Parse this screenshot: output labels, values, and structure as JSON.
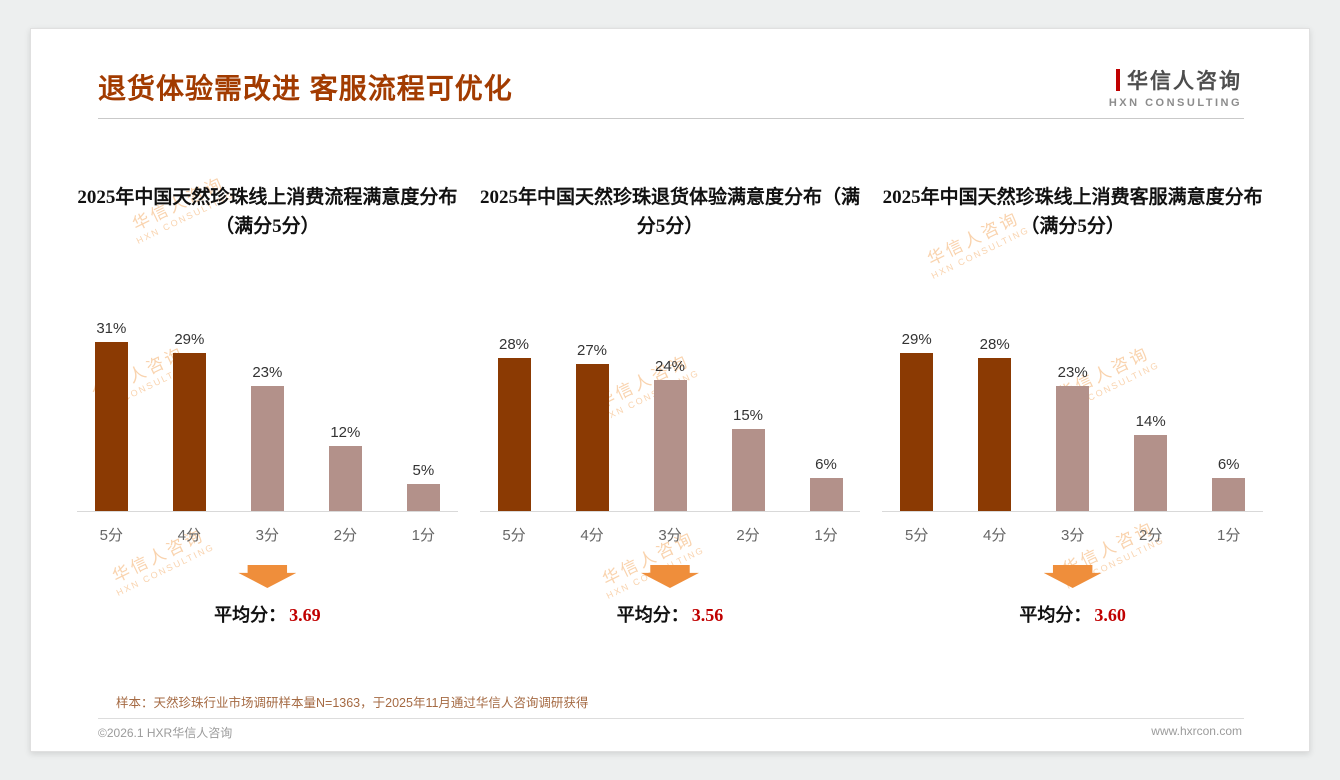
{
  "page": {
    "title": "退货体验需改进 客服流程可优化",
    "logo": {
      "cn": "华信人咨询",
      "en": "HXN CONSULTING"
    },
    "watermark": {
      "cn": "华信人咨询",
      "en": "HXN CONSULTING"
    },
    "footnote": "样本：天然珍珠行业市场调研样本量N=1363，于2025年11月通过华信人咨询调研获得",
    "copyright": "©2026.1 HXR华信人咨询",
    "website": "www.hxrcon.com"
  },
  "labels": {
    "average_prefix": "平均分："
  },
  "colors": {
    "title": "#A23B00",
    "bar_dark": "#8B3A03",
    "bar_light": "#B3918A",
    "average": "#C00000",
    "arrow": "#EF8E3B",
    "footnote": "#A56A43"
  },
  "chart_data": [
    {
      "type": "bar",
      "title": "2025年中国天然珍珠线上消费流程满意度分布（满分5分）",
      "categories": [
        "5分",
        "4分",
        "3分",
        "2分",
        "1分"
      ],
      "values": [
        31,
        29,
        23,
        12,
        5
      ],
      "value_labels": [
        "31%",
        "29%",
        "23%",
        "12%",
        "5%"
      ],
      "bar_colors": [
        "#8B3A03",
        "#8B3A03",
        "#B3918A",
        "#B3918A",
        "#B3918A"
      ],
      "average": "3.69",
      "xlabel": "",
      "ylabel": "",
      "unit": "%",
      "ylim": [
        0,
        35
      ],
      "grid": false,
      "legend": "none"
    },
    {
      "type": "bar",
      "title": "2025年中国天然珍珠退货体验满意度分布（满分5分）",
      "categories": [
        "5分",
        "4分",
        "3分",
        "2分",
        "1分"
      ],
      "values": [
        28,
        27,
        24,
        15,
        6
      ],
      "value_labels": [
        "28%",
        "27%",
        "24%",
        "15%",
        "6%"
      ],
      "bar_colors": [
        "#8B3A03",
        "#8B3A03",
        "#B3918A",
        "#B3918A",
        "#B3918A"
      ],
      "average": "3.56",
      "xlabel": "",
      "ylabel": "",
      "unit": "%",
      "ylim": [
        0,
        35
      ],
      "grid": false,
      "legend": "none"
    },
    {
      "type": "bar",
      "title": "2025年中国天然珍珠线上消费客服满意度分布（满分5分）",
      "categories": [
        "5分",
        "4分",
        "3分",
        "2分",
        "1分"
      ],
      "values": [
        29,
        28,
        23,
        14,
        6
      ],
      "value_labels": [
        "29%",
        "28%",
        "23%",
        "14%",
        "6%"
      ],
      "bar_colors": [
        "#8B3A03",
        "#8B3A03",
        "#B3918A",
        "#B3918A",
        "#B3918A"
      ],
      "average": "3.60",
      "xlabel": "",
      "ylabel": "",
      "unit": "%",
      "ylim": [
        0,
        35
      ],
      "grid": false,
      "legend": "none"
    }
  ]
}
